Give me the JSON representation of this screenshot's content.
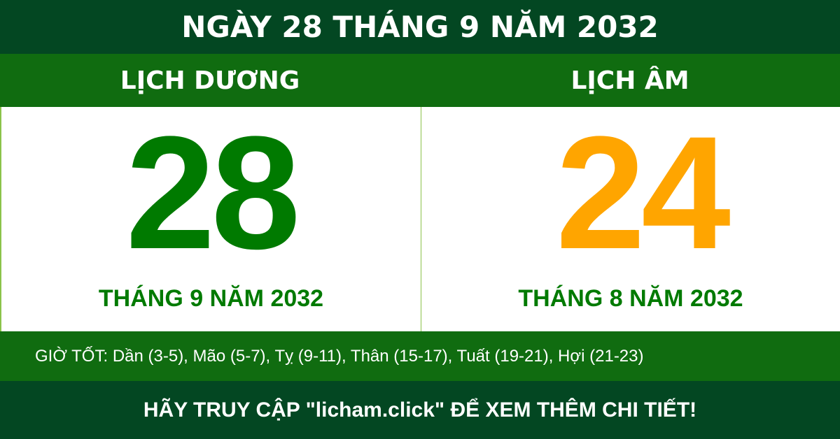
{
  "header": {
    "title": "NGÀY 28 THÁNG 9 NĂM 2032"
  },
  "solar": {
    "label": "LỊCH DƯƠNG",
    "day": "28",
    "month_year": "THÁNG 9 NĂM 2032",
    "color": "#007a00"
  },
  "lunar": {
    "label": "LỊCH ÂM",
    "day": "24",
    "month_year": "THÁNG 8 NĂM 2032",
    "day_color": "#ffa500",
    "text_color": "#007a00"
  },
  "good_hours": "GIỜ TỐT: Dần (3-5), Mão (5-7), Tỵ (9-11), Thân (15-17), Tuất (19-21), Hợi (21-23)",
  "footer": {
    "text": "HÃY TRUY CẬP \"licham.click\" ĐỂ XEM THÊM CHI TIẾT!"
  }
}
